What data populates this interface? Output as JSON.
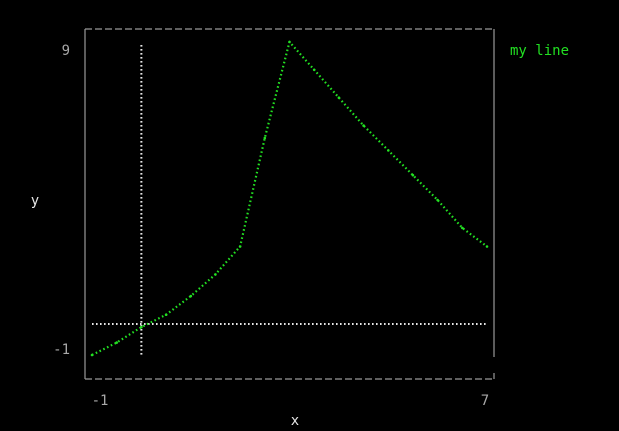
{
  "chart_data": {
    "type": "line",
    "title": "",
    "xlabel": "x",
    "ylabel": "y",
    "xlim": [
      -1,
      7
    ],
    "ylim": [
      -1,
      9
    ],
    "x_tick_labels": [
      "-1",
      "7"
    ],
    "y_tick_labels": [
      "9",
      "-1"
    ],
    "series": [
      {
        "name": "my line",
        "color": "#22e022",
        "x": [
          -1.0,
          -0.5,
          0.0,
          0.5,
          1.0,
          1.5,
          2.0,
          2.5,
          3.0,
          3.5,
          4.0,
          4.5,
          5.0,
          5.5,
          6.0,
          6.5,
          7.0
        ],
        "y": [
          -1.0,
          -0.6,
          -0.1,
          0.3,
          0.9,
          1.6,
          2.5,
          6.0,
          9.1,
          8.2,
          7.3,
          6.4,
          5.6,
          4.8,
          4.0,
          3.1,
          2.5
        ]
      }
    ],
    "reference_lines": {
      "vertical_x": 0,
      "horizontal_y": 0,
      "color": "#e6e6e6"
    },
    "legend_position": "top-right",
    "frame_color": "#9a9a9a",
    "tick_label_color": "#a8a8a8",
    "axis_label_color": "#e6e6e6",
    "background": "#000000"
  }
}
